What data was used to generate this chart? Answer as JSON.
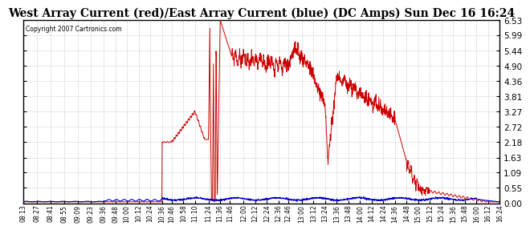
{
  "title": "West Array Current (red)/East Array Current (blue) (DC Amps) Sun Dec 16 16:24",
  "copyright": "Copyright 2007 Cartronics.com",
  "yticks": [
    0.0,
    0.55,
    1.09,
    1.63,
    2.18,
    2.72,
    3.27,
    3.81,
    4.36,
    4.9,
    5.44,
    5.99,
    6.53
  ],
  "ylim": [
    0.0,
    6.53
  ],
  "red_color": "#cc0000",
  "blue_color": "#0000cc",
  "background_color": "#ffffff",
  "grid_color": "#aaaaaa",
  "title_fontsize": 10,
  "xtick_labels": [
    "08:13",
    "08:27",
    "08:41",
    "08:55",
    "09:09",
    "09:23",
    "09:36",
    "09:48",
    "10:00",
    "10:12",
    "10:24",
    "10:36",
    "10:46",
    "10:58",
    "11:10",
    "11:24",
    "11:36",
    "11:46",
    "12:00",
    "12:12",
    "12:24",
    "12:36",
    "12:46",
    "13:00",
    "13:12",
    "13:24",
    "13:36",
    "13:48",
    "14:00",
    "14:12",
    "14:24",
    "14:36",
    "14:48",
    "15:00",
    "15:12",
    "15:24",
    "15:36",
    "15:48",
    "16:00",
    "16:12",
    "16:24"
  ]
}
